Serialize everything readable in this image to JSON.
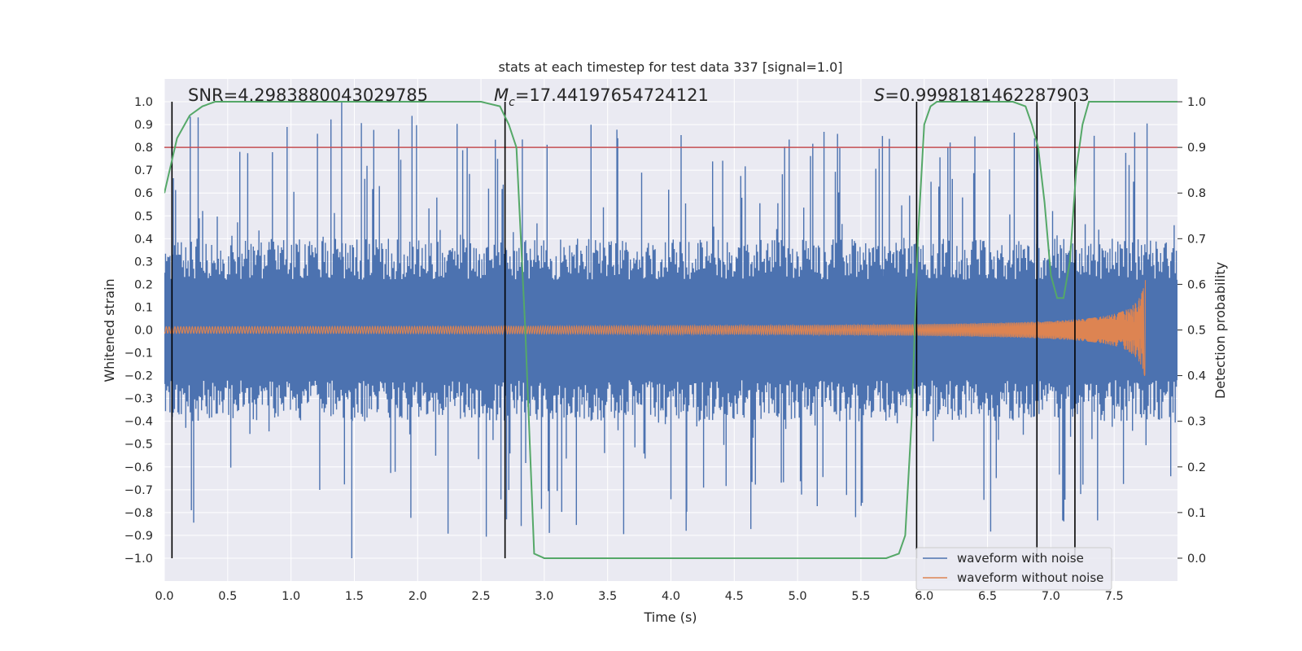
{
  "chart_data": {
    "type": "line",
    "title": "stats at each timestep for test data 337 [signal=1.0]",
    "xlabel": "Time (s)",
    "ylabel": "Whitened strain",
    "y2label": "Detection probability",
    "xlim": [
      0.0,
      8.0
    ],
    "ylim": [
      -1.1,
      1.1
    ],
    "y2lim": [
      -0.05,
      1.05
    ],
    "xticks": [
      "0.0",
      "0.5",
      "1.0",
      "1.5",
      "2.0",
      "2.5",
      "3.0",
      "3.5",
      "4.0",
      "4.5",
      "5.0",
      "5.5",
      "6.0",
      "6.5",
      "7.0",
      "7.5"
    ],
    "yticks": [
      "1.0",
      "0.9",
      "0.8",
      "0.7",
      "0.6",
      "0.5",
      "0.4",
      "0.3",
      "0.2",
      "0.1",
      "0.0",
      "−0.1",
      "−0.2",
      "−0.3",
      "−0.4",
      "−0.5",
      "−0.6",
      "−0.7",
      "−0.8",
      "−0.9",
      "−1.0"
    ],
    "y2ticks": [
      "1.0",
      "0.9",
      "0.8",
      "0.7",
      "0.6",
      "0.5",
      "0.4",
      "0.3",
      "0.2",
      "0.1",
      "0.0"
    ],
    "stats": {
      "snr": "SNR=4.2983880043029785",
      "mc": "=17.44197654724121",
      "s": "=0.9998181462287903"
    },
    "threshold": 0.9,
    "threshold_color": "#c44e52",
    "vlines": [
      0.06,
      2.69,
      5.94,
      6.89,
      7.19
    ],
    "series": [
      {
        "name": "waveform with noise",
        "color": "#4c72b0",
        "envelope": {
          "end_time": 8.0,
          "bulk_amplitude": 0.4,
          "spike_max": 1.0,
          "spike_min": -1.0
        }
      },
      {
        "name": "waveform without noise",
        "color": "#dd8452",
        "chirp": {
          "merger_time": 7.75,
          "peak_amplitude": 0.24,
          "min_amplitude": 0.21
        }
      },
      {
        "name": "detection probability",
        "color": "#55a868",
        "axis": "right",
        "x": [
          0.0,
          0.05,
          0.1,
          0.2,
          0.3,
          0.4,
          0.5,
          1.0,
          2.0,
          2.5,
          2.65,
          2.72,
          2.78,
          2.85,
          2.92,
          3.0,
          5.5,
          5.7,
          5.8,
          5.85,
          5.9,
          5.95,
          6.0,
          6.05,
          6.1,
          6.2,
          6.5,
          6.7,
          6.8,
          6.85,
          6.9,
          6.95,
          7.0,
          7.05,
          7.1,
          7.15,
          7.2,
          7.25,
          7.3,
          7.4,
          7.5,
          8.0
        ],
        "y": [
          0.8,
          0.86,
          0.92,
          0.97,
          0.99,
          1.0,
          1.0,
          1.0,
          1.0,
          1.0,
          0.99,
          0.95,
          0.9,
          0.5,
          0.01,
          0.0,
          0.0,
          0.0,
          0.01,
          0.05,
          0.3,
          0.7,
          0.95,
          0.99,
          1.0,
          1.0,
          1.0,
          1.0,
          0.99,
          0.95,
          0.9,
          0.78,
          0.62,
          0.57,
          0.57,
          0.65,
          0.85,
          0.95,
          1.0,
          1.0,
          1.0,
          1.0
        ]
      }
    ],
    "legend": {
      "placement": "lower-right",
      "entries": [
        "waveform with noise",
        "waveform without noise"
      ]
    }
  }
}
